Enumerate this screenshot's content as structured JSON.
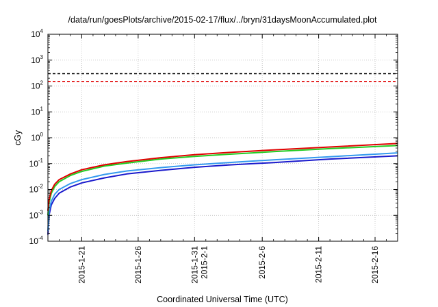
{
  "chart_data": {
    "type": "line",
    "title": "/data/run/goesPlots/archive/2015-02-17/flux/../bryn/31daysMoonAccumulated.plot",
    "xlabel": "Coordinated Universal Time (UTC)",
    "ylabel": "cGy",
    "yscale": "log",
    "ylim": [
      0.0001,
      10000
    ],
    "xlim": [
      0,
      31
    ],
    "y_ticks": [
      {
        "base": "10",
        "exp": "-4",
        "value": 0.0001
      },
      {
        "base": "10",
        "exp": "-3",
        "value": 0.001
      },
      {
        "base": "10",
        "exp": "-2",
        "value": 0.01
      },
      {
        "base": "10",
        "exp": "-1",
        "value": 0.1
      },
      {
        "base": "10",
        "exp": "0",
        "value": 1
      },
      {
        "base": "10",
        "exp": "1",
        "value": 10
      },
      {
        "base": "10",
        "exp": "2",
        "value": 100
      },
      {
        "base": "10",
        "exp": "3",
        "value": 1000
      },
      {
        "base": "10",
        "exp": "4",
        "value": 10000
      }
    ],
    "x_ticks": [
      {
        "day": 3,
        "label": "2015-1-21",
        "label2": ""
      },
      {
        "day": 8,
        "label": "2015-1-26",
        "label2": ""
      },
      {
        "day": 13,
        "label": "2015-1-31",
        "label2": "2015-2-1"
      },
      {
        "day": 19,
        "label": "2015-2-6",
        "label2": ""
      },
      {
        "day": 24,
        "label": "2015-2-11",
        "label2": ""
      },
      {
        "day": 29,
        "label": "2015-2-16",
        "label2": ""
      }
    ],
    "x_minor_days": [
      0,
      1,
      2,
      4,
      5,
      6,
      7,
      9,
      10,
      11,
      12,
      14,
      15,
      16,
      17,
      18,
      20,
      21,
      22,
      23,
      25,
      26,
      27,
      28,
      30
    ],
    "grid": true,
    "reference_lines": [
      {
        "value": 300,
        "color": "#000000",
        "dash": "4,3"
      },
      {
        "value": 150,
        "color": "#e00000",
        "dash": "4,3"
      }
    ],
    "series": [
      {
        "color": "#e00000",
        "x": [
          0,
          0.1,
          0.3,
          0.6,
          1,
          2,
          3,
          5,
          7,
          10,
          13,
          16,
          20,
          25,
          31
        ],
        "values": [
          0.0015,
          0.004,
          0.009,
          0.016,
          0.024,
          0.04,
          0.058,
          0.09,
          0.12,
          0.17,
          0.22,
          0.27,
          0.34,
          0.44,
          0.6
        ]
      },
      {
        "color": "#22cc22",
        "x": [
          0,
          0.1,
          0.3,
          0.6,
          1,
          2,
          3,
          5,
          7,
          10,
          13,
          16,
          20,
          25,
          31
        ],
        "values": [
          0.001,
          0.003,
          0.007,
          0.013,
          0.02,
          0.035,
          0.05,
          0.08,
          0.105,
          0.15,
          0.19,
          0.23,
          0.29,
          0.38,
          0.5
        ]
      },
      {
        "color": "#3399ee",
        "x": [
          0,
          0.1,
          0.3,
          0.6,
          1,
          2,
          3,
          5,
          7,
          10,
          13,
          16,
          20,
          25,
          31
        ],
        "values": [
          0.00025,
          0.0015,
          0.0035,
          0.0065,
          0.01,
          0.017,
          0.024,
          0.038,
          0.052,
          0.07,
          0.09,
          0.11,
          0.14,
          0.185,
          0.26
        ]
      },
      {
        "color": "#1a1acc",
        "x": [
          0,
          0.1,
          0.3,
          0.6,
          1,
          2,
          3,
          5,
          7,
          10,
          13,
          16,
          20,
          25,
          31
        ],
        "values": [
          0.00018,
          0.001,
          0.0025,
          0.0045,
          0.0072,
          0.0125,
          0.018,
          0.028,
          0.04,
          0.055,
          0.072,
          0.088,
          0.11,
          0.15,
          0.2
        ]
      }
    ]
  }
}
